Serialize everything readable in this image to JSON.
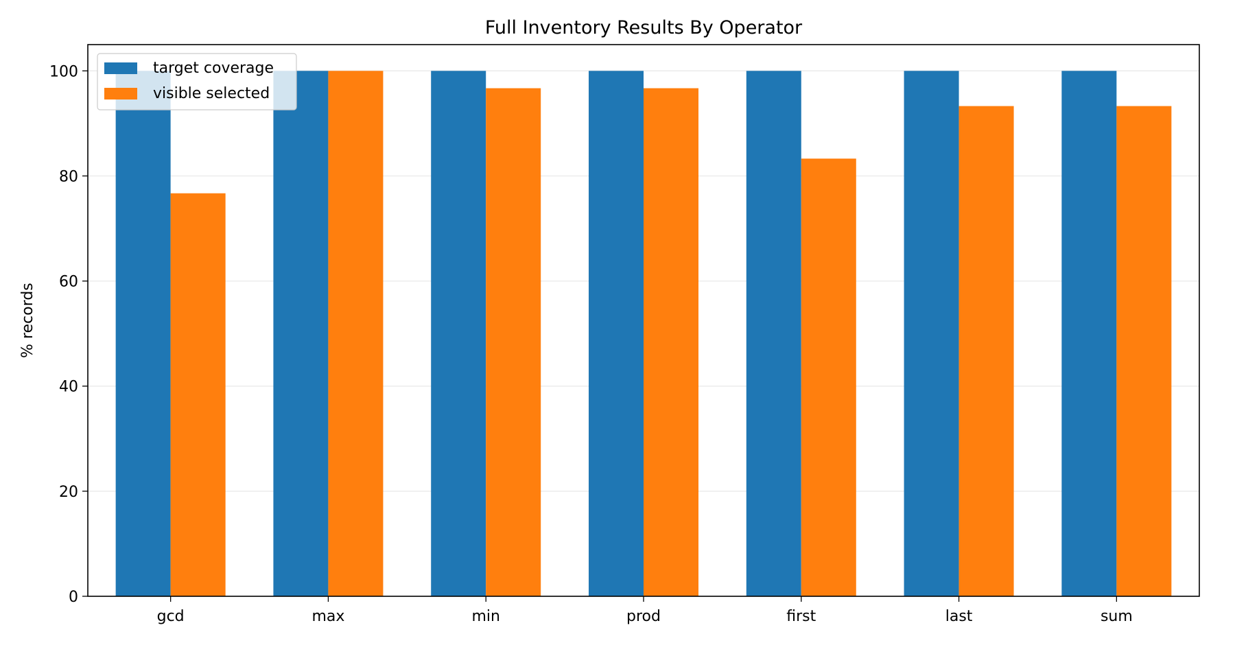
{
  "chart_data": {
    "type": "bar",
    "title": "Full Inventory Results By Operator",
    "xlabel": "",
    "ylabel": "% records",
    "categories": [
      "gcd",
      "max",
      "min",
      "prod",
      "first",
      "last",
      "sum"
    ],
    "series": [
      {
        "name": "target coverage",
        "color": "#1f77b4",
        "values": [
          100,
          100,
          100,
          100,
          100,
          100,
          100
        ]
      },
      {
        "name": "visible selected",
        "color": "#ff7f0e",
        "values": [
          76.7,
          100,
          96.7,
          96.7,
          83.3,
          93.3,
          93.3
        ]
      }
    ],
    "ylim": [
      0,
      105
    ],
    "yticks": [
      0,
      20,
      40,
      60,
      80,
      100
    ],
    "grid": "horizontal",
    "legend_position": "top-left"
  }
}
